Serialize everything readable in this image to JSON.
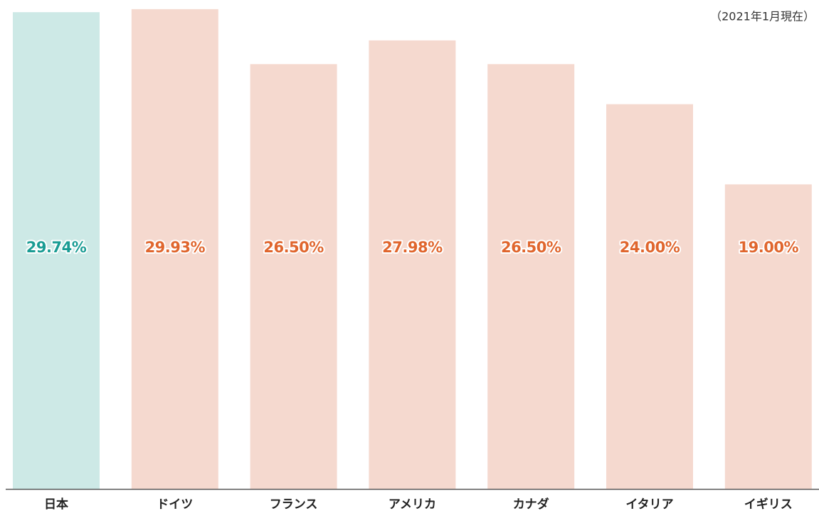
{
  "chart_data": {
    "type": "bar",
    "annotation": "（2021年1月現在）",
    "categories": [
      "日本",
      "ドイツ",
      "フランス",
      "アメリカ",
      "カナダ",
      "イタリア",
      "イギリス"
    ],
    "values": [
      29.74,
      29.93,
      26.5,
      27.98,
      26.5,
      24.0,
      19.0
    ],
    "value_labels": [
      "29.74%",
      "29.93%",
      "26.50%",
      "27.98%",
      "26.50%",
      "24.00%",
      "19.00%"
    ],
    "colors": [
      "#cde9e6",
      "#f5d9cf",
      "#f5d9cf",
      "#f5d9cf",
      "#f5d9cf",
      "#f5d9cf",
      "#f5d9cf"
    ],
    "label_colors": [
      "#1a9c94",
      "#e0662e",
      "#e0662e",
      "#e0662e",
      "#e0662e",
      "#e0662e",
      "#e0662e"
    ],
    "ylim": [
      0,
      30.5
    ]
  }
}
